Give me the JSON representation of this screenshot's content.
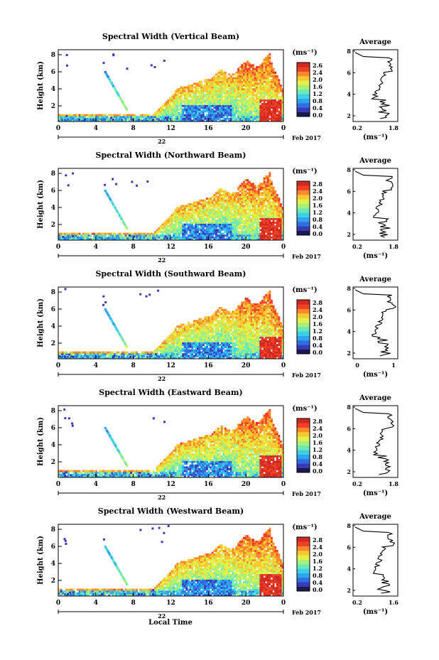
{
  "figure": {
    "bottom_label": "Local Time",
    "colorbar_unit": "(ms⁻¹)",
    "colors": [
      "#1a1a50",
      "#3a3ab8",
      "#2f6fe0",
      "#2fa4f0",
      "#3cd0e8",
      "#6ee8b4",
      "#a8f07a",
      "#e2f04a",
      "#f8c832",
      "#f88a2a",
      "#f0402a",
      "#d02a20"
    ]
  },
  "chart_data": [
    {
      "type": "heatmap",
      "title": "Spectral Width (Vertical Beam)",
      "ylabel": "Height (km)",
      "x_ticks": [
        "0",
        "4",
        "8",
        "12",
        "16",
        "20",
        "0"
      ],
      "date_label": "22",
      "month_label": "Feb 2017",
      "colorbar_ticks": [
        "2.6",
        "2.4",
        "2.0",
        "1.6",
        "1.2",
        "0.8",
        "0.4",
        "0.0"
      ],
      "xlim": [
        0,
        24
      ],
      "ylim": [
        0,
        8
      ],
      "profile": {
        "title": "Average",
        "x_ticks": [
          "0.2",
          "1.8"
        ],
        "xlabel": "(ms⁻¹)",
        "y_ticks": [
          "8",
          "6",
          "4",
          "2"
        ]
      }
    },
    {
      "type": "heatmap",
      "title": "Spectral Width (Northward Beam)",
      "ylabel": "Height (km)",
      "x_ticks": [
        "0",
        "4",
        "8",
        "12",
        "16",
        "20",
        "0"
      ],
      "date_label": "22",
      "month_label": "Feb 2017",
      "colorbar_ticks": [
        "2.8",
        "2.4",
        "2.0",
        "1.6",
        "1.2",
        "0.8",
        "0.4",
        "0.0"
      ],
      "xlim": [
        0,
        24
      ],
      "ylim": [
        0,
        8
      ],
      "profile": {
        "title": "Average",
        "x_ticks": [
          "0.2",
          "1.8"
        ],
        "xlabel": "(ms⁻¹)",
        "y_ticks": [
          "8",
          "6",
          "4",
          "2"
        ]
      }
    },
    {
      "type": "heatmap",
      "title": "Spectral Width (Southward Beam)",
      "ylabel": "Height (km)",
      "x_ticks": [
        "0",
        "4",
        "8",
        "12",
        "16",
        "20",
        "0"
      ],
      "date_label": "22",
      "month_label": "Feb 2017",
      "colorbar_ticks": [
        "2.8",
        "2.4",
        "2.0",
        "1.6",
        "1.2",
        "0.8",
        "0.4",
        "0.0"
      ],
      "xlim": [
        0,
        24
      ],
      "ylim": [
        0,
        8
      ],
      "profile": {
        "title": "Average",
        "x_ticks": [
          "0",
          "1"
        ],
        "xlabel": "(ms⁻¹)",
        "y_ticks": [
          "8",
          "6",
          "4",
          "2"
        ]
      }
    },
    {
      "type": "heatmap",
      "title": "Spectral Width (Eastward Beam)",
      "ylabel": "Height (km)",
      "x_ticks": [
        "0",
        "4",
        "8",
        "12",
        "16",
        "20",
        "0"
      ],
      "date_label": "22",
      "month_label": "Feb 2017",
      "colorbar_ticks": [
        "2.8",
        "2.4",
        "2.0",
        "1.6",
        "1.2",
        "0.8",
        "0.4",
        "0.0"
      ],
      "xlim": [
        0,
        24
      ],
      "ylim": [
        0,
        8
      ],
      "profile": {
        "title": "Average",
        "x_ticks": [
          "0.2",
          "1.8"
        ],
        "xlabel": "(ms⁻¹)",
        "y_ticks": [
          "8",
          "6",
          "4",
          "2"
        ]
      }
    },
    {
      "type": "heatmap",
      "title": "Spectral Width (Westward Beam)",
      "ylabel": "Height (km)",
      "x_ticks": [
        "0",
        "4",
        "8",
        "12",
        "16",
        "20",
        "0"
      ],
      "date_label": "22",
      "month_label": "Feb 2017",
      "colorbar_ticks": [
        "2.8",
        "2.4",
        "2.0",
        "1.6",
        "1.2",
        "0.8",
        "0.4",
        "0.0"
      ],
      "xlim": [
        0,
        24
      ],
      "ylim": [
        0,
        8
      ],
      "profile": {
        "title": "Average",
        "x_ticks": [
          "0.2",
          "1.6"
        ],
        "xlabel": "(ms⁻¹)",
        "y_ticks": [
          "8",
          "6",
          "4",
          "2"
        ]
      }
    }
  ]
}
